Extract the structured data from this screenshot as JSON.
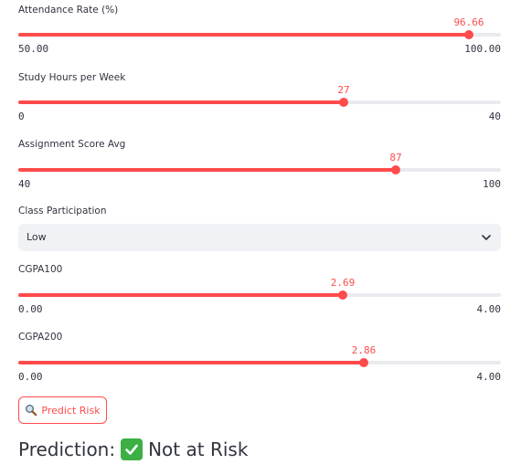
{
  "sliders": [
    {
      "label": "Attendance Rate (%)",
      "value": "96.66",
      "min": "50.00",
      "max": "100.00",
      "fraction": 0.933
    },
    {
      "label": "Study Hours per Week",
      "value": "27",
      "min": "0",
      "max": "40",
      "fraction": 0.675
    },
    {
      "label": "Assignment Score Avg",
      "value": "87",
      "min": "40",
      "max": "100",
      "fraction": 0.783
    },
    {
      "label": "CGPA100",
      "value": "2.69",
      "min": "0.00",
      "max": "4.00",
      "fraction": 0.6725
    },
    {
      "label": "CGPA200",
      "value": "2.86",
      "min": "0.00",
      "max": "4.00",
      "fraction": 0.715
    }
  ],
  "participation": {
    "label": "Class Participation",
    "value": "Low"
  },
  "predict_button": {
    "label": "Predict Risk",
    "icon": "magnifier-icon"
  },
  "prediction": {
    "label": "Prediction:",
    "icon": "check-mark-icon",
    "result": "Not at Risk"
  },
  "colors": {
    "accent": "#ff4b4b",
    "track": "#eaebef",
    "select_bg": "#f0f2f6",
    "check_green": "#3cb043"
  }
}
